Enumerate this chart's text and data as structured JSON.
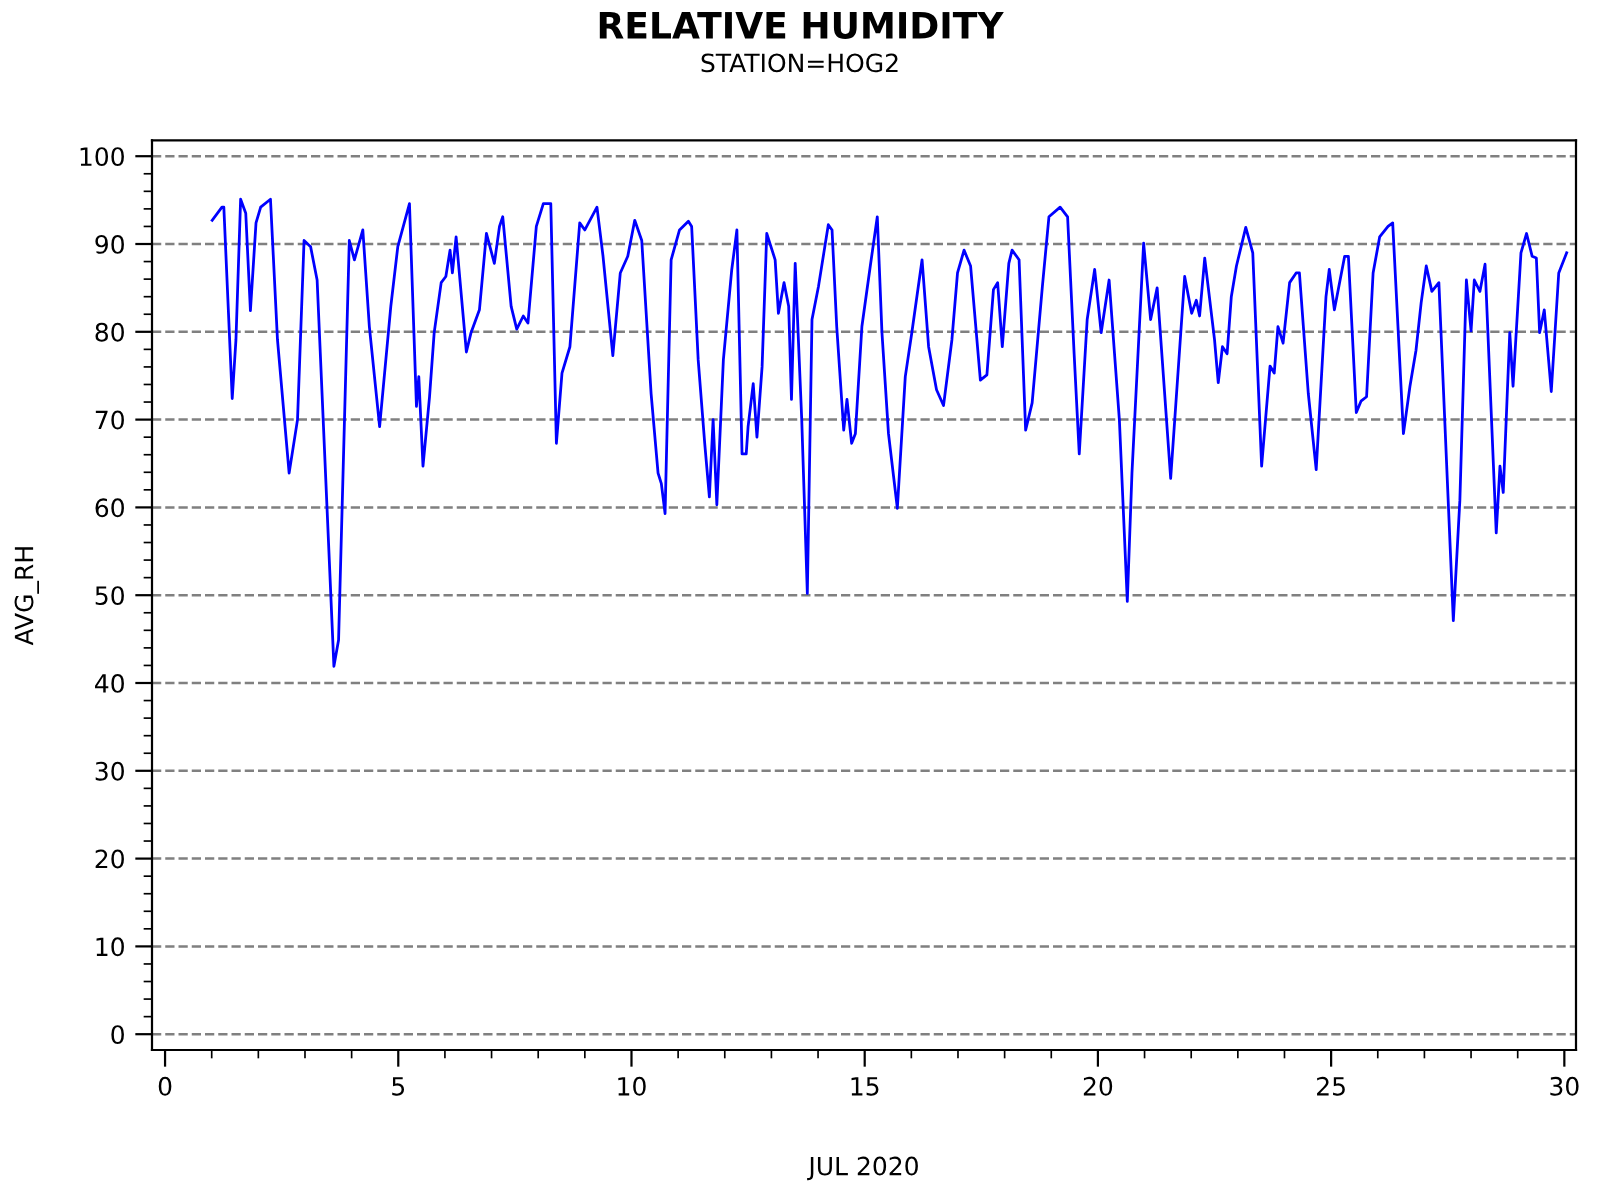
{
  "chart_data": {
    "type": "line",
    "title": "RELATIVE HUMIDITY",
    "subtitle": "STATION=HOG2",
    "xlabel": "JUL 2020",
    "ylabel": "AVG_RH",
    "xlim": [
      -0.28,
      30.25
    ],
    "ylim": [
      -1.8,
      101.8
    ],
    "xticks": [
      0,
      5,
      10,
      15,
      20,
      25,
      30
    ],
    "yticks": [
      0,
      10,
      20,
      30,
      40,
      50,
      60,
      70,
      80,
      90,
      100
    ],
    "grid": "y",
    "marker": "none",
    "line_style": "solid",
    "series": [
      {
        "color": "#0000ff",
        "x": [
          1.01,
          1.22,
          1.26,
          1.44,
          1.52,
          1.62,
          1.73,
          1.83,
          1.95,
          2.05,
          2.26,
          2.41,
          2.66,
          2.84,
          2.98,
          3.12,
          3.26,
          3.62,
          3.72,
          3.95,
          4.06,
          4.24,
          4.38,
          4.6,
          4.84,
          4.99,
          5.24,
          5.39,
          5.44,
          5.53,
          5.67,
          5.77,
          5.92,
          6.02,
          6.11,
          6.16,
          6.24,
          6.46,
          6.56,
          6.74,
          6.89,
          7.06,
          7.17,
          7.24,
          7.42,
          7.54,
          7.68,
          7.78,
          7.96,
          8.11,
          8.27,
          8.39,
          8.51,
          8.68,
          8.89,
          9.0,
          9.26,
          9.39,
          9.6,
          9.76,
          9.92,
          10.07,
          10.22,
          10.42,
          10.57,
          10.64,
          10.72,
          10.85,
          11.03,
          11.22,
          11.29,
          11.43,
          11.57,
          11.67,
          11.75,
          11.83,
          11.97,
          12.15,
          12.26,
          12.37,
          12.46,
          12.5,
          12.61,
          12.69,
          12.8,
          12.9,
          13.08,
          13.15,
          13.27,
          13.37,
          13.43,
          13.51,
          13.65,
          13.77,
          13.87,
          14.01,
          14.22,
          14.3,
          14.4,
          14.55,
          14.62,
          14.72,
          14.8,
          14.94,
          15.12,
          15.27,
          15.37,
          15.51,
          15.7,
          15.87,
          16.01,
          16.23,
          16.37,
          16.54,
          16.69,
          16.87,
          16.99,
          17.13,
          17.27,
          17.48,
          17.62,
          17.76,
          17.85,
          17.95,
          18.09,
          18.16,
          18.31,
          18.45,
          18.59,
          18.81,
          18.95,
          19.19,
          19.35,
          19.49,
          19.6,
          19.77,
          19.93,
          20.07,
          20.24,
          20.46,
          20.63,
          20.73,
          20.98,
          21.13,
          21.27,
          21.56,
          21.86,
          22.01,
          22.11,
          22.18,
          22.29,
          22.5,
          22.58,
          22.67,
          22.77,
          22.86,
          22.97,
          23.17,
          23.32,
          23.51,
          23.69,
          23.78,
          23.86,
          23.97,
          24.11,
          24.25,
          24.32,
          24.51,
          24.68,
          24.89,
          24.96,
          25.07,
          25.29,
          25.37,
          25.54,
          25.64,
          25.76,
          25.9,
          26.04,
          26.22,
          26.32,
          26.55,
          26.69,
          26.82,
          26.93,
          27.04,
          27.16,
          27.31,
          27.62,
          27.76,
          27.9,
          28.0,
          28.07,
          28.19,
          28.3,
          28.54,
          28.62,
          28.69,
          28.83,
          28.9,
          29.07,
          29.19,
          29.31,
          29.4,
          29.47,
          29.57,
          29.72,
          29.88,
          30.05
        ],
        "values": [
          92.7,
          94.2,
          94.2,
          72.4,
          79.1,
          95.1,
          93.5,
          82.4,
          92.4,
          94.2,
          95.1,
          79.1,
          63.9,
          70.0,
          90.4,
          89.7,
          85.9,
          41.9,
          44.9,
          90.4,
          88.2,
          91.6,
          80.6,
          69.2,
          82.9,
          89.7,
          94.6,
          71.5,
          74.9,
          64.7,
          72.6,
          79.9,
          85.6,
          86.3,
          89.3,
          86.7,
          90.8,
          77.7,
          79.9,
          82.5,
          91.2,
          87.8,
          92.0,
          93.1,
          82.9,
          80.3,
          81.8,
          81.0,
          92.0,
          94.6,
          94.6,
          67.3,
          75.3,
          78.3,
          92.4,
          91.6,
          94.2,
          88.6,
          77.3,
          86.7,
          88.6,
          92.7,
          90.4,
          73.0,
          63.9,
          62.7,
          59.3,
          88.2,
          91.6,
          92.6,
          92.0,
          76.8,
          67.3,
          61.2,
          70.0,
          60.3,
          76.8,
          87.1,
          91.6,
          66.1,
          66.1,
          69.2,
          74.1,
          68.0,
          76.0,
          91.2,
          88.2,
          82.1,
          85.6,
          82.9,
          72.3,
          87.8,
          70.0,
          50.2,
          81.4,
          85.2,
          92.2,
          91.6,
          80.6,
          68.8,
          72.3,
          67.3,
          68.4,
          80.6,
          87.5,
          93.1,
          79.9,
          68.4,
          59.9,
          74.9,
          79.9,
          88.2,
          78.3,
          73.4,
          71.6,
          79.1,
          86.7,
          89.3,
          87.5,
          74.5,
          75.1,
          84.8,
          85.6,
          78.3,
          87.8,
          89.3,
          88.2,
          68.8,
          71.9,
          85.2,
          93.1,
          94.2,
          93.1,
          77.5,
          66.1,
          81.4,
          87.1,
          79.9,
          85.9,
          70.0,
          49.3,
          63.9,
          90.1,
          81.4,
          85.0,
          63.3,
          86.3,
          82.1,
          83.6,
          81.8,
          88.4,
          79.1,
          74.2,
          78.3,
          77.5,
          84.0,
          87.5,
          91.9,
          89.0,
          64.7,
          76.1,
          75.3,
          80.6,
          78.7,
          85.6,
          86.7,
          86.7,
          73.0,
          64.3,
          84.0,
          87.1,
          82.5,
          88.6,
          88.6,
          70.8,
          72.1,
          72.6,
          86.7,
          90.8,
          92.0,
          92.4,
          68.4,
          73.8,
          77.9,
          83.3,
          87.5,
          84.6,
          85.6,
          47.1,
          60.8,
          85.9,
          80.1,
          85.9,
          84.6,
          87.7,
          57.1,
          64.7,
          61.7,
          79.9,
          73.8,
          89.0,
          91.2,
          88.6,
          88.4,
          79.9,
          82.5,
          73.2,
          86.7,
          89.0
        ]
      }
    ]
  }
}
